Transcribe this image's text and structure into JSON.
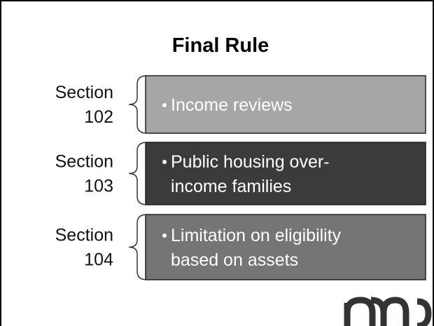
{
  "title": "Final Rule",
  "sections": [
    {
      "label": "Section",
      "number": "102",
      "lines": [
        "Income reviews"
      ],
      "color": "#a6a6a6"
    },
    {
      "label": "Section",
      "number": "103",
      "lines": [
        "Public housing over-",
        "income families"
      ],
      "color": "#3b3b3b"
    },
    {
      "label": "Section",
      "number": "104",
      "lines": [
        "Limitation on eligibility",
        "based on assets"
      ],
      "color": "#757575"
    }
  ]
}
